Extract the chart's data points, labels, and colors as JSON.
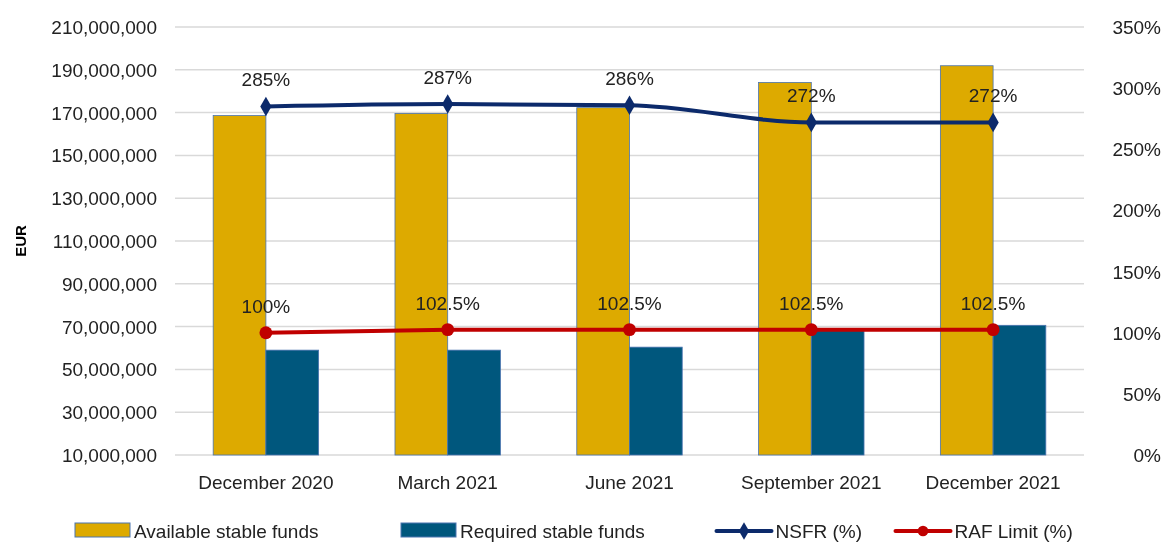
{
  "chart_data": {
    "type": "bar",
    "ylabel": "EUR",
    "categories": [
      "December 2020",
      "March 2021",
      "June 2021",
      "September 2021",
      "December 2021"
    ],
    "series": [
      {
        "name": "Available stable funds",
        "color": "#ddaa00",
        "values": [
          168600000,
          169600000,
          172300000,
          184100000,
          191900000
        ]
      },
      {
        "name": "Required stable funds",
        "color": "#00577d",
        "values": [
          59000000,
          59000000,
          60400000,
          68100000,
          70600000
        ]
      },
      {
        "name": "NSFR (%)",
        "type": "line",
        "axis": "y2",
        "color": "#0c2a6b",
        "marker": "diamond",
        "values": [
          285,
          287,
          286,
          272,
          272
        ],
        "value_labels": [
          "285%",
          "287%",
          "286%",
          "272%",
          "272%"
        ]
      },
      {
        "name": "RAF Limit (%)",
        "type": "line",
        "axis": "y2",
        "color": "#c00000",
        "marker": "circle",
        "values": [
          100,
          102.5,
          102.5,
          102.5,
          102.5
        ],
        "value_labels": [
          "100%",
          "102.5%",
          "102.5%",
          "102.5%",
          "102.5%"
        ]
      }
    ],
    "ylim": [
      10000000,
      210000000
    ],
    "yticks": [
      {
        "value": 10000000,
        "label": "10,000,000"
      },
      {
        "value": 30000000,
        "label": "30,000,000"
      },
      {
        "value": 50000000,
        "label": "50,000,000"
      },
      {
        "value": 70000000,
        "label": "70,000,000"
      },
      {
        "value": 90000000,
        "label": "90,000,000"
      },
      {
        "value": 110000000,
        "label": "110,000,000"
      },
      {
        "value": 130000000,
        "label": "130,000,000"
      },
      {
        "value": 150000000,
        "label": "150,000,000"
      },
      {
        "value": 170000000,
        "label": "170,000,000"
      },
      {
        "value": 190000000,
        "label": "190,000,000"
      },
      {
        "value": 210000000,
        "label": "210,000,000"
      }
    ],
    "y2lim": [
      0,
      350
    ],
    "y2ticks": [
      {
        "value": 0,
        "label": "0%"
      },
      {
        "value": 50,
        "label": "50%"
      },
      {
        "value": 100,
        "label": "100%"
      },
      {
        "value": 150,
        "label": "150%"
      },
      {
        "value": 200,
        "label": "200%"
      },
      {
        "value": 250,
        "label": "250%"
      },
      {
        "value": 300,
        "label": "300%"
      },
      {
        "value": 350,
        "label": "350%"
      }
    ],
    "grid": "y",
    "legend": "bottom"
  }
}
